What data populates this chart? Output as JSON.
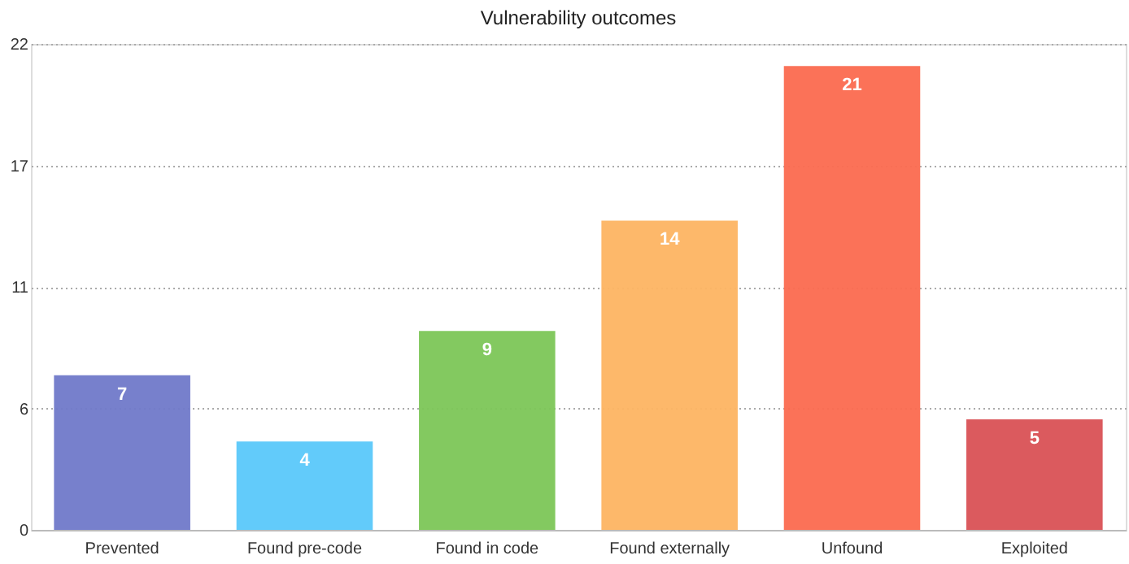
{
  "chart_data": {
    "type": "bar",
    "title": "Vulnerability outcomes",
    "categories": [
      "Prevented",
      "Found pre-code",
      "Found in code",
      "Found externally",
      "Unfound",
      "Exploited"
    ],
    "values": [
      7,
      4,
      9,
      14,
      21,
      5
    ],
    "colors": [
      "#7079c9",
      "#5ac8fa",
      "#7cc657",
      "#fdb462",
      "#fb6a4f",
      "#d95155"
    ],
    "ylim": [
      0,
      22
    ],
    "yticks": [
      0,
      {
        "value": 5.5,
        "label": "6"
      },
      {
        "value": 11,
        "label": "11"
      },
      {
        "value": 16.5,
        "label": "17"
      },
      22
    ],
    "grid": "y",
    "data_labels": true
  }
}
